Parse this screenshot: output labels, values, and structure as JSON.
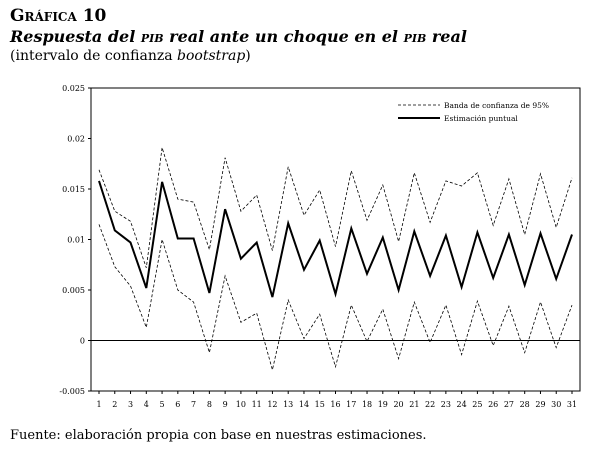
{
  "header": {
    "label": "Gráfica 10",
    "title_parts": [
      "Respuesta del ",
      "pib",
      " real ante un choque en el ",
      "pib",
      " real"
    ],
    "subtitle_open": "(intervalo de confianza ",
    "subtitle_italic": "bootstrap",
    "subtitle_close": ")"
  },
  "footer": {
    "source": "Fuente: elaboración propia con base en nuestras estimaciones."
  },
  "chart_data": {
    "type": "line",
    "title": "Respuesta del pib real ante un choque en el pib real",
    "xlabel": "",
    "ylabel": "",
    "x": [
      1,
      2,
      3,
      4,
      5,
      6,
      7,
      8,
      9,
      10,
      11,
      12,
      13,
      14,
      15,
      16,
      17,
      18,
      19,
      20,
      21,
      22,
      23,
      24,
      25,
      26,
      27,
      28,
      29,
      30,
      31
    ],
    "ylim": [
      -0.005,
      0.025
    ],
    "yticks": [
      "-0.005",
      "0",
      "0.005",
      "0.01",
      "0.015",
      "0.02",
      "0.025"
    ],
    "legend_position": "top-right",
    "grid": false,
    "series": [
      {
        "name": "Banda de confianza de 95%",
        "style": "dashed",
        "upper": [
          0.0169,
          0.0128,
          0.0118,
          0.0072,
          0.0191,
          0.014,
          0.0137,
          0.009,
          0.0181,
          0.0128,
          0.0144,
          0.0089,
          0.0172,
          0.0124,
          0.0149,
          0.0093,
          0.0168,
          0.0119,
          0.0154,
          0.0098,
          0.0166,
          0.0117,
          0.0158,
          0.0153,
          0.0166,
          0.0114,
          0.016,
          0.0105,
          0.0165,
          0.0112,
          0.0161
        ],
        "lower": [
          0.0115,
          0.0073,
          0.0054,
          0.0013,
          0.01,
          0.005,
          0.0038,
          -0.0012,
          0.0064,
          0.0018,
          0.0027,
          -0.0029,
          0.004,
          0.0002,
          0.0026,
          -0.0026,
          0.0035,
          -0.0001,
          0.0031,
          -0.0018,
          0.0038,
          -0.0002,
          0.0035,
          -0.0014,
          0.0039,
          -0.0005,
          0.0034,
          -0.0012,
          0.0038,
          -0.0007,
          0.0035
        ]
      },
      {
        "name": "Estimación puntual",
        "style": "solid",
        "values": [
          0.0158,
          0.0109,
          0.0097,
          0.0052,
          0.0157,
          0.0101,
          0.0101,
          0.0047,
          0.013,
          0.0081,
          0.0097,
          0.0043,
          0.0116,
          0.007,
          0.0099,
          0.0046,
          0.0111,
          0.0066,
          0.0102,
          0.005,
          0.0108,
          0.0064,
          0.0104,
          0.0053,
          0.0107,
          0.0062,
          0.0105,
          0.0055,
          0.0106,
          0.0061,
          0.0105
        ]
      }
    ]
  }
}
